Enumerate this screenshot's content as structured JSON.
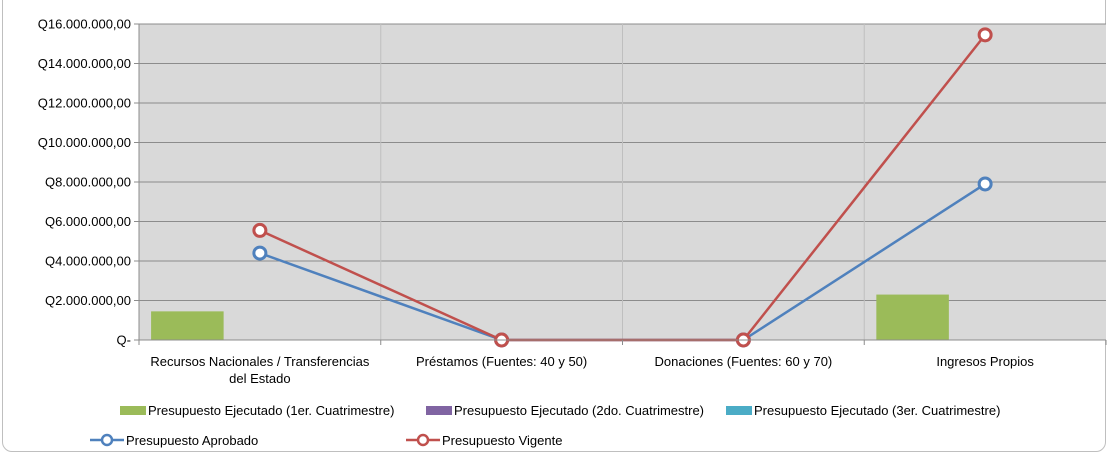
{
  "chart_data": {
    "type": "bar",
    "categories": [
      [
        "Recursos Nacionales / Transferencias",
        "del Estado"
      ],
      [
        "Préstamos (Fuentes: 40 y 50)"
      ],
      [
        "Donaciones  (Fuentes: 60 y 70)"
      ],
      [
        "Ingresos Propios"
      ]
    ],
    "ylim": [
      0,
      16000000
    ],
    "y_ticks": [
      {
        "value": 0,
        "label": "Q-"
      },
      {
        "value": 2000000,
        "label": "Q2.000.000,00"
      },
      {
        "value": 4000000,
        "label": "Q4.000.000,00"
      },
      {
        "value": 6000000,
        "label": "Q6.000.000,00"
      },
      {
        "value": 8000000,
        "label": "Q8.000.000,00"
      },
      {
        "value": 10000000,
        "label": "Q10.000.000,00"
      },
      {
        "value": 12000000,
        "label": "Q12.000.000,00"
      },
      {
        "value": 14000000,
        "label": "Q14.000.000,00"
      },
      {
        "value": 16000000,
        "label": "Q16.000.000,00"
      }
    ],
    "grid": true,
    "plot_background": "#d9d9d9",
    "legend_position": "bottom",
    "bar_series": [
      {
        "name": "Presupuesto Ejecutado (1er. Cuatrimestre)",
        "color": "#9bbb59",
        "values": [
          1450000,
          0,
          0,
          2300000
        ]
      },
      {
        "name": "Presupuesto Ejecutado (2do. Cuatrimestre)",
        "color": "#8064a2",
        "values": [
          0,
          0,
          0,
          0
        ]
      },
      {
        "name": "Presupuesto Ejecutado (3er. Cuatrimestre)",
        "color": "#4bacc6",
        "values": [
          0,
          0,
          0,
          0
        ]
      }
    ],
    "line_series": [
      {
        "name": "Presupuesto Aprobado",
        "color": "#4f81bd",
        "values": [
          4400000,
          0,
          0,
          7900000
        ]
      },
      {
        "name": "Presupuesto Vigente",
        "color": "#c0504d",
        "values": [
          5550000,
          0,
          0,
          15450000
        ]
      }
    ]
  }
}
